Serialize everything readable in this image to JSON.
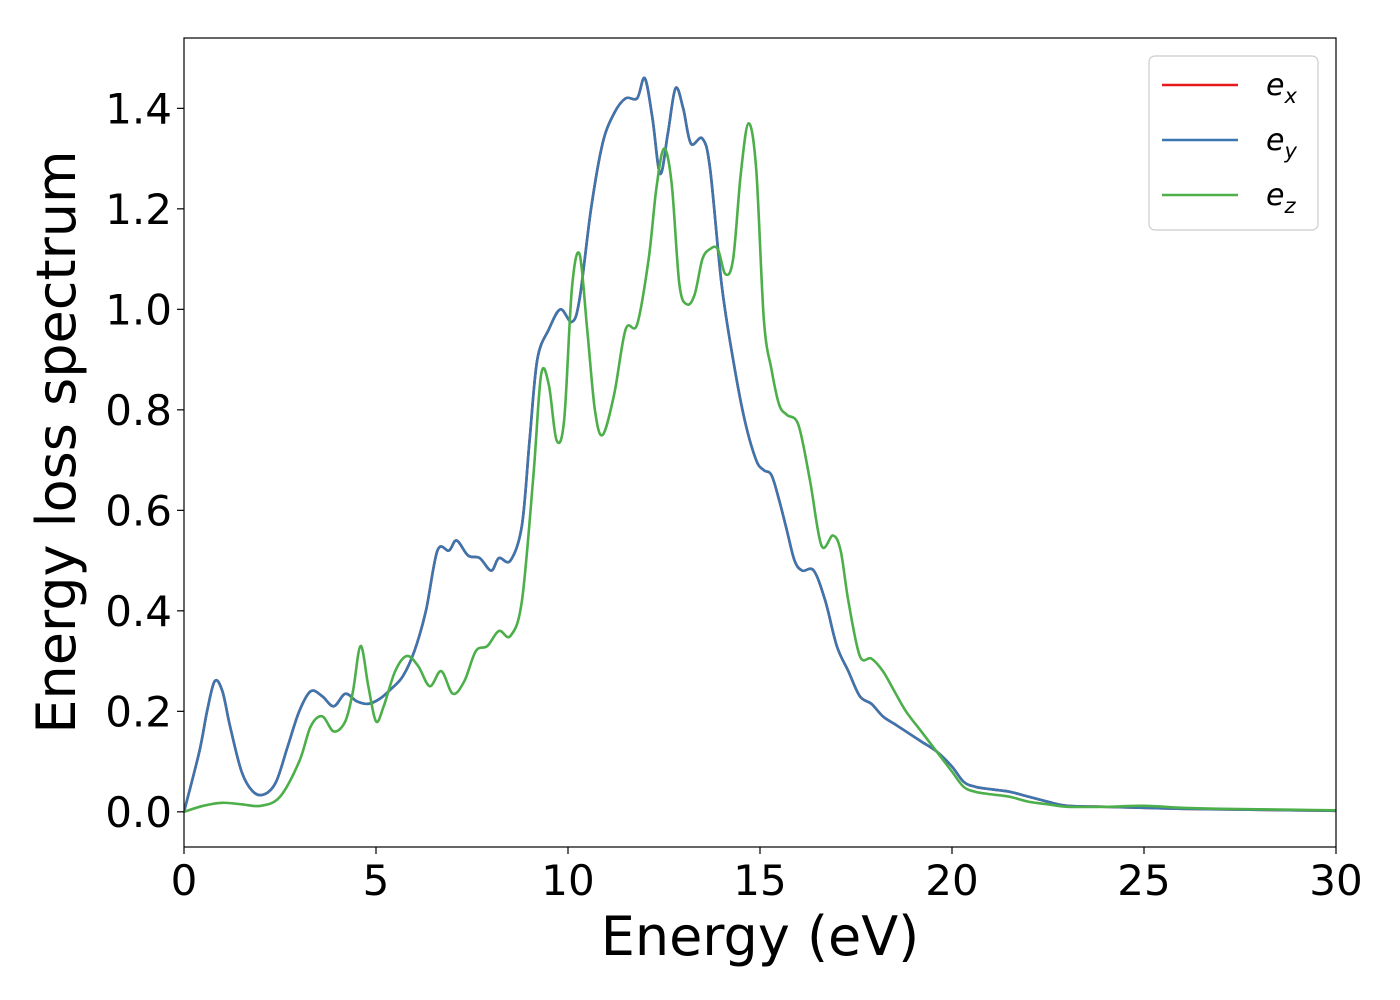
{
  "chart_data": {
    "type": "line",
    "title": "",
    "xlabel": "Energy (eV)",
    "ylabel": "Energy loss spectrum",
    "xlim": [
      0,
      30
    ],
    "ylim": [
      -0.07,
      1.54
    ],
    "xticks": [
      0,
      5,
      10,
      15,
      20,
      25,
      30
    ],
    "xtick_labels": [
      "0",
      "5",
      "10",
      "15",
      "20",
      "25",
      "30"
    ],
    "yticks": [
      0.0,
      0.2,
      0.4,
      0.6,
      0.8,
      1.0,
      1.2,
      1.4
    ],
    "ytick_labels": [
      "0.0",
      "0.2",
      "0.4",
      "0.6",
      "0.8",
      "1.0",
      "1.2",
      "1.4"
    ],
    "grid": false,
    "legend_position": "top-right",
    "series": [
      {
        "name": "e_x",
        "legend_base": "e",
        "legend_sub": "x",
        "color": "#e41a1c",
        "x": [
          0,
          0.4,
          0.6,
          0.8,
          1.0,
          1.2,
          1.5,
          1.8,
          2.1,
          2.4,
          2.7,
          3.0,
          3.3,
          3.6,
          3.9,
          4.2,
          4.5,
          4.8,
          5.1,
          5.4,
          5.7,
          6.0,
          6.3,
          6.6,
          6.9,
          7.1,
          7.4,
          7.7,
          8.0,
          8.2,
          8.5,
          8.8,
          9.0,
          9.2,
          9.5,
          9.8,
          10.1,
          10.3,
          10.6,
          10.9,
          11.2,
          11.5,
          11.8,
          12.0,
          12.2,
          12.4,
          12.6,
          12.8,
          13.0,
          13.2,
          13.5,
          13.7,
          14.0,
          14.3,
          14.6,
          14.9,
          15.1,
          15.3,
          15.5,
          15.7,
          15.9,
          16.1,
          16.4,
          16.7,
          17.0,
          17.3,
          17.6,
          17.9,
          18.2,
          18.5,
          18.8,
          19.2,
          19.6,
          20.0,
          20.3,
          20.6,
          21.0,
          21.5,
          22.0,
          22.5,
          23.0,
          24.0,
          25.0,
          26.0,
          27.0,
          28.0,
          29.0,
          30.0
        ],
        "values": [
          0.0,
          0.12,
          0.2,
          0.26,
          0.24,
          0.17,
          0.08,
          0.04,
          0.035,
          0.06,
          0.13,
          0.2,
          0.24,
          0.23,
          0.21,
          0.235,
          0.22,
          0.215,
          0.225,
          0.245,
          0.27,
          0.32,
          0.4,
          0.52,
          0.52,
          0.54,
          0.51,
          0.505,
          0.48,
          0.505,
          0.5,
          0.57,
          0.74,
          0.9,
          0.96,
          1.0,
          0.975,
          1.02,
          1.2,
          1.33,
          1.39,
          1.42,
          1.42,
          1.46,
          1.38,
          1.27,
          1.35,
          1.44,
          1.4,
          1.33,
          1.34,
          1.28,
          1.05,
          0.9,
          0.78,
          0.7,
          0.68,
          0.67,
          0.62,
          0.56,
          0.5,
          0.48,
          0.48,
          0.42,
          0.33,
          0.28,
          0.23,
          0.215,
          0.19,
          0.175,
          0.16,
          0.14,
          0.12,
          0.09,
          0.06,
          0.05,
          0.045,
          0.04,
          0.03,
          0.02,
          0.012,
          0.01,
          0.008,
          0.006,
          0.005,
          0.004,
          0.003,
          0.002
        ]
      },
      {
        "name": "e_y",
        "legend_base": "e",
        "legend_sub": "y",
        "color": "#3b76af",
        "x": [
          0,
          0.4,
          0.6,
          0.8,
          1.0,
          1.2,
          1.5,
          1.8,
          2.1,
          2.4,
          2.7,
          3.0,
          3.3,
          3.6,
          3.9,
          4.2,
          4.5,
          4.8,
          5.1,
          5.4,
          5.7,
          6.0,
          6.3,
          6.6,
          6.9,
          7.1,
          7.4,
          7.7,
          8.0,
          8.2,
          8.5,
          8.8,
          9.0,
          9.2,
          9.5,
          9.8,
          10.1,
          10.3,
          10.6,
          10.9,
          11.2,
          11.5,
          11.8,
          12.0,
          12.2,
          12.4,
          12.6,
          12.8,
          13.0,
          13.2,
          13.5,
          13.7,
          14.0,
          14.3,
          14.6,
          14.9,
          15.1,
          15.3,
          15.5,
          15.7,
          15.9,
          16.1,
          16.4,
          16.7,
          17.0,
          17.3,
          17.6,
          17.9,
          18.2,
          18.5,
          18.8,
          19.2,
          19.6,
          20.0,
          20.3,
          20.6,
          21.0,
          21.5,
          22.0,
          22.5,
          23.0,
          24.0,
          25.0,
          26.0,
          27.0,
          28.0,
          29.0,
          30.0
        ],
        "values": [
          0.0,
          0.12,
          0.2,
          0.26,
          0.24,
          0.17,
          0.08,
          0.04,
          0.035,
          0.06,
          0.13,
          0.2,
          0.24,
          0.23,
          0.21,
          0.235,
          0.22,
          0.215,
          0.225,
          0.245,
          0.27,
          0.32,
          0.4,
          0.52,
          0.52,
          0.54,
          0.51,
          0.505,
          0.48,
          0.505,
          0.5,
          0.57,
          0.74,
          0.9,
          0.96,
          1.0,
          0.975,
          1.02,
          1.2,
          1.33,
          1.39,
          1.42,
          1.42,
          1.46,
          1.38,
          1.27,
          1.35,
          1.44,
          1.4,
          1.33,
          1.34,
          1.28,
          1.05,
          0.9,
          0.78,
          0.7,
          0.68,
          0.67,
          0.62,
          0.56,
          0.5,
          0.48,
          0.48,
          0.42,
          0.33,
          0.28,
          0.23,
          0.215,
          0.19,
          0.175,
          0.16,
          0.14,
          0.12,
          0.09,
          0.06,
          0.05,
          0.045,
          0.04,
          0.03,
          0.02,
          0.012,
          0.01,
          0.008,
          0.006,
          0.005,
          0.004,
          0.003,
          0.002
        ]
      },
      {
        "name": "e_z",
        "legend_base": "e",
        "legend_sub": "z",
        "color": "#4daf4a",
        "x": [
          0,
          0.5,
          1.0,
          1.5,
          2.0,
          2.5,
          3.0,
          3.3,
          3.6,
          3.9,
          4.2,
          4.4,
          4.6,
          4.8,
          5.0,
          5.2,
          5.5,
          5.8,
          6.1,
          6.4,
          6.7,
          7.0,
          7.3,
          7.6,
          7.9,
          8.2,
          8.5,
          8.8,
          9.1,
          9.3,
          9.5,
          9.7,
          9.9,
          10.1,
          10.3,
          10.5,
          10.7,
          10.9,
          11.2,
          11.5,
          11.8,
          12.1,
          12.3,
          12.5,
          12.7,
          12.9,
          13.1,
          13.3,
          13.5,
          13.7,
          13.9,
          14.1,
          14.3,
          14.5,
          14.7,
          14.9,
          15.1,
          15.3,
          15.5,
          15.7,
          16.0,
          16.3,
          16.6,
          16.9,
          17.1,
          17.3,
          17.6,
          17.9,
          18.2,
          18.5,
          18.8,
          19.2,
          19.6,
          20.0,
          20.3,
          20.6,
          21.0,
          21.5,
          22.0,
          22.5,
          23.0,
          24.0,
          25.0,
          26.0,
          27.0,
          28.0,
          29.0,
          30.0
        ],
        "values": [
          0.0,
          0.012,
          0.018,
          0.015,
          0.012,
          0.03,
          0.1,
          0.17,
          0.19,
          0.16,
          0.18,
          0.24,
          0.33,
          0.25,
          0.18,
          0.21,
          0.28,
          0.31,
          0.29,
          0.25,
          0.28,
          0.235,
          0.26,
          0.32,
          0.33,
          0.36,
          0.35,
          0.42,
          0.67,
          0.87,
          0.85,
          0.74,
          0.78,
          1.04,
          1.11,
          0.96,
          0.8,
          0.75,
          0.83,
          0.96,
          0.97,
          1.1,
          1.24,
          1.32,
          1.25,
          1.05,
          1.01,
          1.03,
          1.1,
          1.12,
          1.12,
          1.07,
          1.1,
          1.27,
          1.37,
          1.28,
          0.98,
          0.88,
          0.81,
          0.79,
          0.77,
          0.66,
          0.53,
          0.55,
          0.52,
          0.42,
          0.31,
          0.305,
          0.28,
          0.24,
          0.2,
          0.16,
          0.12,
          0.08,
          0.05,
          0.04,
          0.035,
          0.03,
          0.02,
          0.015,
          0.01,
          0.01,
          0.012,
          0.008,
          0.006,
          0.005,
          0.004,
          0.003
        ]
      }
    ]
  }
}
